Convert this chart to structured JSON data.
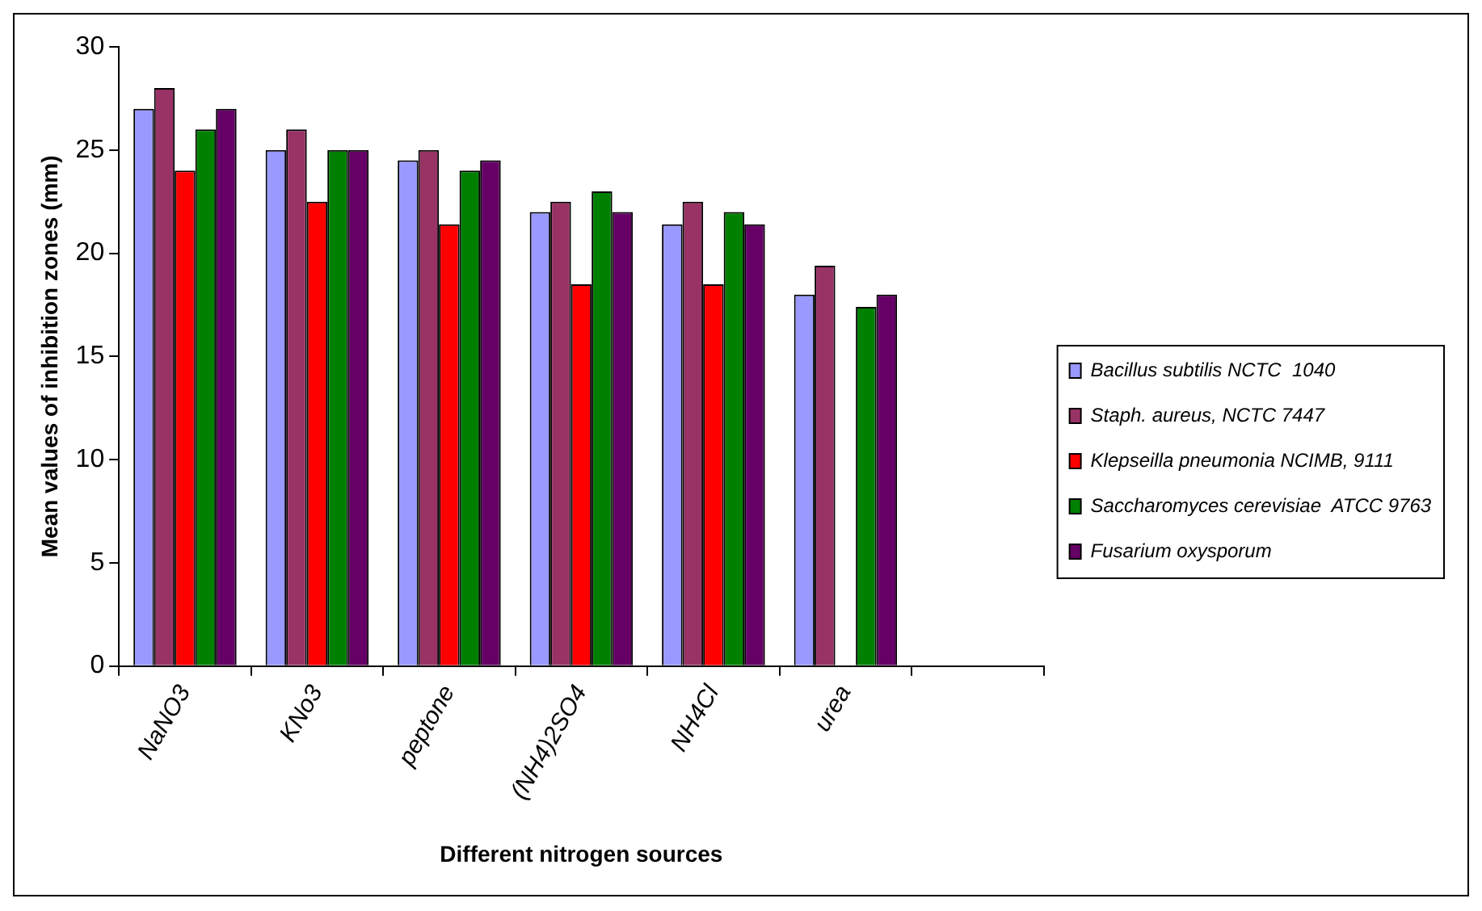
{
  "chart_data": {
    "type": "bar",
    "xlabel": "Different nitrogen sources",
    "ylabel": "Mean values of inhibition zones (mm)",
    "categories": [
      "NaNO3",
      "KNo3",
      "peptone",
      "(NH4)2SO4",
      "NH4Cl",
      "urea",
      null
    ],
    "series": [
      {
        "name": "Bacillus subtilis NCTC  1040",
        "color": "#9999ff",
        "values": [
          27,
          25,
          24.5,
          22,
          21.4,
          18,
          null
        ]
      },
      {
        "name": "Staph. aureus, NCTC 7447",
        "color": "#993366",
        "values": [
          28,
          26,
          25,
          22.5,
          22.5,
          19.4,
          null
        ]
      },
      {
        "name": "Klepseilla pneumonia NCIMB, 9111",
        "color": "#ff0000",
        "values": [
          24,
          22.5,
          21.4,
          18.5,
          18.5,
          null,
          null
        ]
      },
      {
        "name": "Saccharomyces cerevisiae  ATCC 9763",
        "color": "#008000",
        "values": [
          26,
          25,
          24,
          23,
          22,
          17.4,
          null
        ]
      },
      {
        "name": "Fusarium oxysporum",
        "color": "#660066",
        "values": [
          27,
          25,
          24.5,
          22,
          21.4,
          18,
          null
        ]
      }
    ],
    "ylim": [
      0,
      30
    ],
    "yticks": [
      0,
      5,
      10,
      15,
      20,
      25,
      30
    ],
    "grid": false,
    "legend": "right"
  }
}
